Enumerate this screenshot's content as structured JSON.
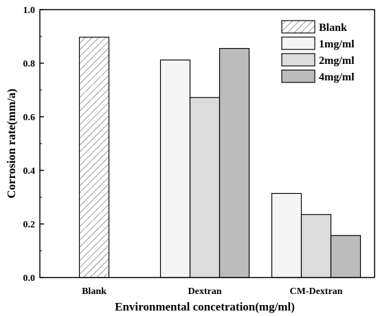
{
  "chart_data": {
    "type": "bar",
    "title": "",
    "xlabel": "Environmental concetration(mg/ml)",
    "ylabel": "Corrosion rate(mm/a)",
    "ylim": [
      0,
      1.0
    ],
    "yticks": [
      "0.0",
      "0.2",
      "0.4",
      "0.6",
      "0.8",
      "1.0"
    ],
    "categories": [
      "Blank",
      "Dextran",
      "CM-Dextran"
    ],
    "series": [
      {
        "name": "Blank",
        "color": "#ffffff",
        "pattern": "hatch",
        "values": [
          0.897,
          null,
          null
        ]
      },
      {
        "name": "1mg/ml",
        "color": "#f5f5f5",
        "values": [
          null,
          0.812,
          0.314
        ]
      },
      {
        "name": "2mg/ml",
        "color": "#dcdcdc",
        "values": [
          null,
          0.672,
          0.235
        ]
      },
      {
        "name": "4mg/ml",
        "color": "#bcbcbc",
        "values": [
          null,
          0.855,
          0.157
        ]
      }
    ],
    "legend_position": "top-right",
    "grid": false
  }
}
